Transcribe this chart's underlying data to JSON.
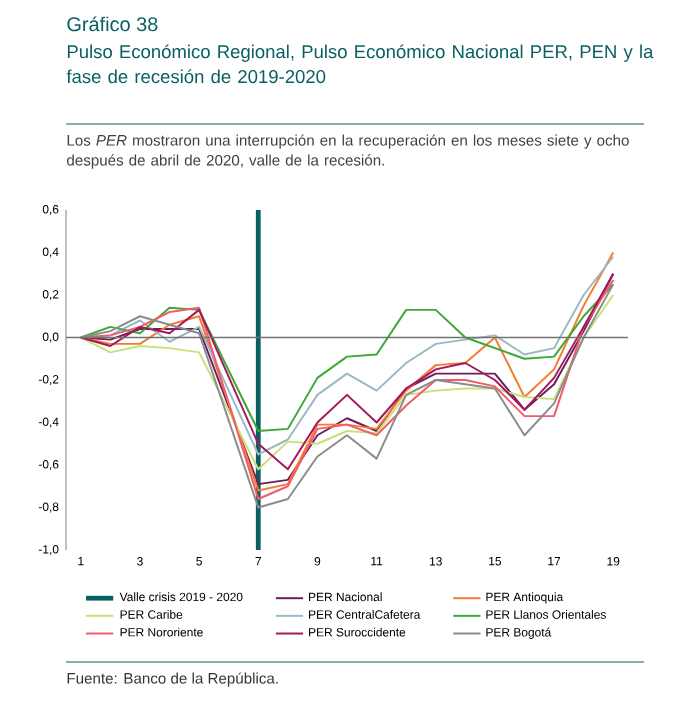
{
  "chart_data": {
    "type": "line",
    "title": "Gráfico 38",
    "subtitle": "Pulso Económico Regional, Pulso Económico Nacional PER, PEN y la fase de recesión de 2019-2020",
    "annotations": [
      "Los *PER* mostraron una interrupción en la recuperación en los meses siete y ocho después de abril de 2020, valle de la recesión.",
      "Fuente: Banco de la República."
    ],
    "x": [
      1,
      2,
      3,
      4,
      5,
      7,
      8,
      9,
      10,
      11,
      12,
      13,
      14,
      15,
      16,
      17,
      18,
      19
    ],
    "series": [
      {
        "name": "PER Nacional",
        "color": "#6a1f5c",
        "values": [
          0,
          -0.01,
          0.04,
          0.04,
          0.04,
          -0.69,
          -0.67,
          -0.46,
          -0.38,
          -0.44,
          -0.24,
          -0.17,
          -0.17,
          -0.17,
          -0.34,
          -0.22,
          0.03,
          0.3
        ]
      },
      {
        "name": "PER Antioquia",
        "color": "#f47c30",
        "values": [
          0,
          -0.03,
          -0.03,
          0.06,
          0.1,
          -0.72,
          -0.69,
          -0.41,
          -0.41,
          -0.43,
          -0.25,
          -0.13,
          -0.12,
          0.0,
          -0.28,
          -0.15,
          0.15,
          0.4
        ]
      },
      {
        "name": "PER Caribe",
        "color": "#c9e07a",
        "values": [
          0,
          -0.07,
          -0.04,
          -0.05,
          -0.07,
          -0.62,
          -0.49,
          -0.5,
          -0.44,
          -0.45,
          -0.27,
          -0.25,
          -0.24,
          -0.24,
          -0.28,
          -0.29,
          0.0,
          0.2
        ]
      },
      {
        "name": "PER CentralCafetera",
        "color": "#9bb9c4",
        "values": [
          0,
          0.01,
          0.08,
          -0.02,
          0.05,
          -0.55,
          -0.48,
          -0.27,
          -0.17,
          -0.25,
          -0.12,
          -0.03,
          -0.01,
          0.01,
          -0.08,
          -0.05,
          0.2,
          0.38
        ]
      },
      {
        "name": "PER Llanos Orientales",
        "color": "#3aa935",
        "values": [
          0,
          0.05,
          0.02,
          0.14,
          0.13,
          -0.44,
          -0.43,
          -0.19,
          -0.09,
          -0.08,
          0.13,
          0.13,
          0.0,
          -0.05,
          -0.1,
          -0.09,
          0.1,
          0.25
        ]
      },
      {
        "name": "PER Nororiente",
        "color": "#f25c6a",
        "values": [
          0,
          0.01,
          0.05,
          0.12,
          0.14,
          -0.76,
          -0.7,
          -0.43,
          -0.41,
          -0.46,
          -0.32,
          -0.2,
          -0.2,
          -0.23,
          -0.37,
          -0.37,
          0.05,
          0.27
        ]
      },
      {
        "name": "PER Suroccidente",
        "color": "#a3195b",
        "values": [
          0,
          -0.04,
          0.05,
          0.02,
          0.13,
          -0.5,
          -0.62,
          -0.4,
          -0.27,
          -0.4,
          -0.24,
          -0.15,
          -0.12,
          -0.2,
          -0.34,
          -0.19,
          0.05,
          0.3
        ]
      },
      {
        "name": "PER Bogotá",
        "color": "#8c8c8c",
        "values": [
          0,
          0.03,
          0.1,
          0.06,
          0.02,
          -0.8,
          -0.76,
          -0.56,
          -0.46,
          -0.57,
          -0.27,
          -0.2,
          -0.22,
          -0.24,
          -0.46,
          -0.31,
          0.0,
          0.25
        ]
      }
    ],
    "ref_lines": [
      {
        "axis": "x",
        "value": 7,
        "label": "Valle crisis 2019 - 2020",
        "color": "#0a5f63"
      }
    ],
    "xlim": [
      0.5,
      19.5
    ],
    "xticks": [
      1,
      3,
      5,
      7,
      9,
      11,
      13,
      15,
      17,
      19
    ],
    "ylim": [
      -1.0,
      0.6
    ],
    "yticks": [
      {
        "value": -1.0,
        "label": "-1,0"
      },
      {
        "value": -0.8,
        "label": "-0,8"
      },
      {
        "value": -0.6,
        "label": "-0,6"
      },
      {
        "value": -0.4,
        "label": "-0,4"
      },
      {
        "value": -0.2,
        "label": "-0,2"
      },
      {
        "value": 0.0,
        "label": "0,0"
      },
      {
        "value": 0.2,
        "label": "0,2"
      },
      {
        "value": 0.4,
        "label": "0,4"
      },
      {
        "value": 0.6,
        "label": "0,6"
      }
    ],
    "legend": "bottom",
    "grid": false,
    "marker": "none",
    "line_style": "solid"
  }
}
